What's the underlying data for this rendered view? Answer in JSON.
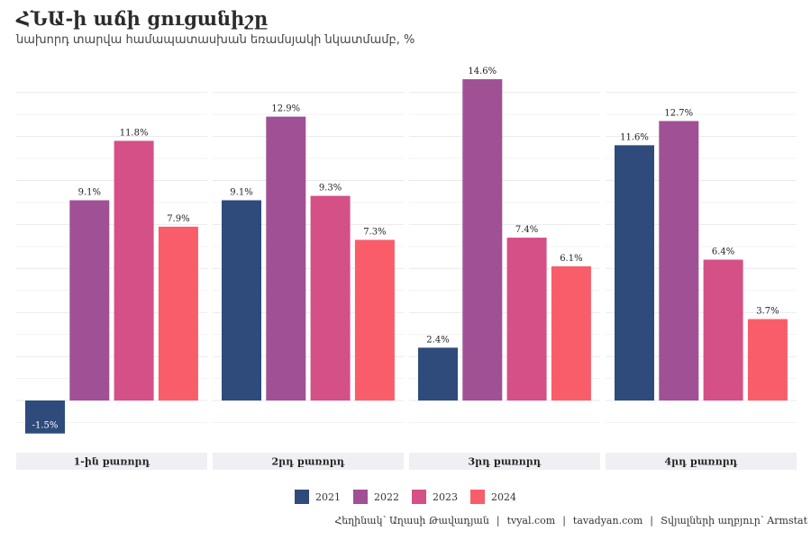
{
  "chart_data": {
    "type": "bar",
    "title": "ՀՆԱ-ի աճի ցուցանիշը",
    "subtitle": "նախորդ տարվա համապատասխան եռամսյակի նկատմամբ, %",
    "categories": [
      "1-ին քառորդ",
      "2րդ քառորդ",
      "3րդ քառորդ",
      "4րդ քառորդ"
    ],
    "series": [
      {
        "name": "2021",
        "color": "#2e4b7c",
        "values": [
          -1.5,
          9.1,
          2.4,
          11.6
        ]
      },
      {
        "name": "2022",
        "color": "#a05195",
        "values": [
          9.1,
          12.9,
          14.6,
          12.7
        ]
      },
      {
        "name": "2023",
        "color": "#d45087",
        "values": [
          11.8,
          9.3,
          7.4,
          6.4
        ]
      },
      {
        "name": "2024",
        "color": "#f95d6a",
        "values": [
          7.9,
          7.3,
          6.1,
          3.7
        ]
      }
    ],
    "value_suffix": "%",
    "ylim": [
      -2,
      15
    ],
    "grid": true,
    "legend_position": "bottom"
  },
  "caption": {
    "author": "Հեղինակ՝ Աղասի Թավադյան",
    "site1": "tvyal.com",
    "site2": "tavadyan.com",
    "source": "Տվյալների աղբյուր՝ Armstat",
    "separator": "|"
  }
}
